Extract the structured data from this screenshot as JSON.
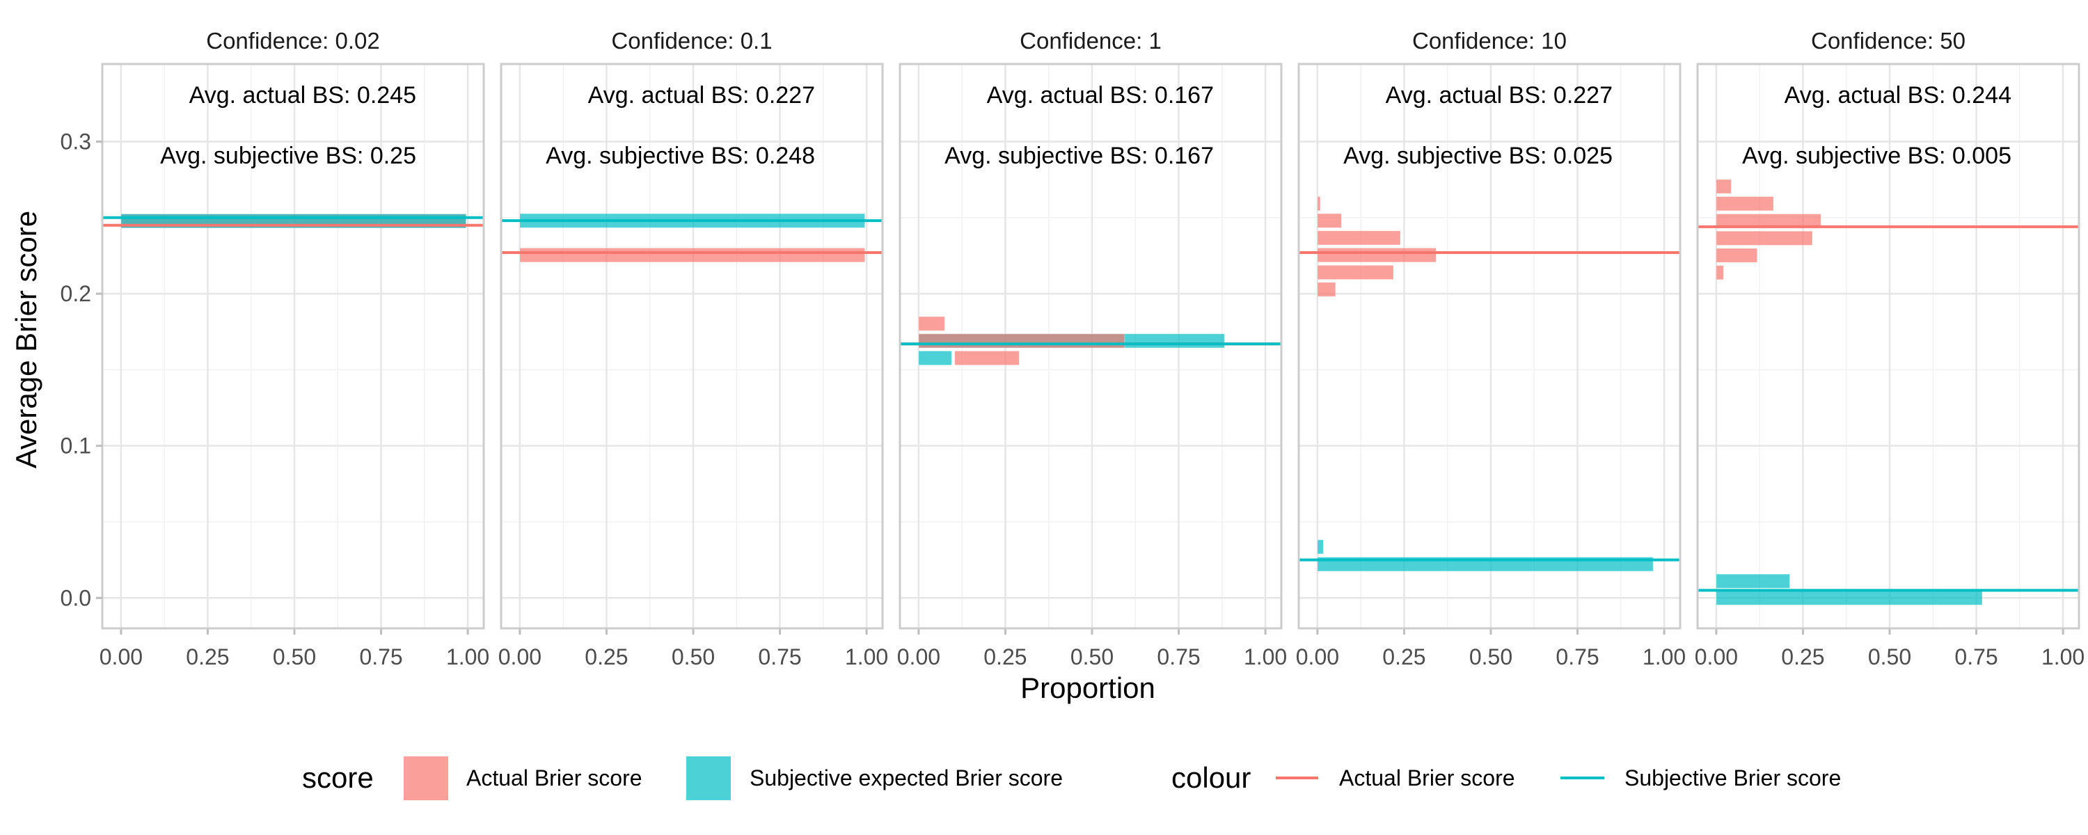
{
  "chart_data": {
    "type": "bar",
    "orientation": "horizontal histogram, faceted",
    "xlabel": "Proportion",
    "ylabel": "Average Brier score",
    "xlim": [
      -0.054,
      1.046
    ],
    "ylim": [
      -0.02,
      0.351
    ],
    "x_ticks": [
      "0.00",
      "0.25",
      "0.50",
      "0.75",
      "1.00"
    ],
    "x_tick_values": [
      0,
      0.25,
      0.5,
      0.75,
      1
    ],
    "y_ticks": [
      "0.0",
      "0.1",
      "0.2",
      "0.3"
    ],
    "y_tick_values": [
      0,
      0.1,
      0.2,
      0.3
    ],
    "bin_width": 0.0113,
    "grid": true,
    "colors": {
      "actual": "#F8766D",
      "subjective": "#00BFC4"
    },
    "panels": [
      {
        "title": "Confidence: 0.02",
        "annot_actual": "Avg. actual BS: 0.245",
        "annot_subjective": "Avg. subjective BS: 0.25",
        "line_actual": 0.245,
        "line_subjective": 0.25,
        "bars": [
          {
            "score": "actual",
            "y": 0.2478,
            "xmin": 0,
            "xmax": 0.995
          },
          {
            "score": "subjective",
            "y": 0.2478,
            "xmin": 0,
            "xmax": 0.995
          }
        ]
      },
      {
        "title": "Confidence: 0.1",
        "annot_actual": "Avg. actual BS: 0.227",
        "annot_subjective": "Avg. subjective BS: 0.248",
        "line_actual": 0.227,
        "line_subjective": 0.248,
        "bars": [
          {
            "score": "subjective",
            "y": 0.248,
            "xmin": 0,
            "xmax": 0.995
          },
          {
            "score": "actual",
            "y": 0.2254,
            "xmin": 0,
            "xmax": 0.995
          }
        ]
      },
      {
        "title": "Confidence: 1",
        "annot_actual": "Avg. actual BS: 0.167",
        "annot_subjective": "Avg. subjective BS: 0.167",
        "line_actual": 0.167,
        "line_subjective": 0.167,
        "bars": [
          {
            "score": "actual",
            "y": 0.1803,
            "xmin": 0,
            "xmax": 0.075
          },
          {
            "score": "subjective",
            "y": 0.169,
            "xmin": 0,
            "xmax": 0.882
          },
          {
            "score": "actual",
            "y": 0.169,
            "xmin": 0,
            "xmax": 0.594
          },
          {
            "score": "subjective",
            "y": 0.1577,
            "xmin": 0,
            "xmax": 0.095
          },
          {
            "score": "actual",
            "y": 0.1577,
            "xmin": 0.104,
            "xmax": 0.29
          }
        ]
      },
      {
        "title": "Confidence: 10",
        "annot_actual": "Avg. actual BS: 0.227",
        "annot_subjective": "Avg. subjective BS: 0.025",
        "line_actual": 0.227,
        "line_subjective": 0.025,
        "bars": [
          {
            "score": "actual",
            "y": 0.2592,
            "xmin": 0,
            "xmax": 0.008
          },
          {
            "score": "actual",
            "y": 0.248,
            "xmin": 0,
            "xmax": 0.069
          },
          {
            "score": "actual",
            "y": 0.2367,
            "xmin": 0,
            "xmax": 0.239
          },
          {
            "score": "actual",
            "y": 0.2254,
            "xmin": 0,
            "xmax": 0.342
          },
          {
            "score": "actual",
            "y": 0.214,
            "xmin": 0,
            "xmax": 0.219
          },
          {
            "score": "actual",
            "y": 0.2028,
            "xmin": 0,
            "xmax": 0.052
          },
          {
            "score": "subjective",
            "y": 0.0336,
            "xmin": 0,
            "xmax": 0.017
          },
          {
            "score": "subjective",
            "y": 0.0222,
            "xmin": 0,
            "xmax": 0.968
          }
        ]
      },
      {
        "title": "Confidence: 50",
        "annot_actual": "Avg. actual BS: 0.244",
        "annot_subjective": "Avg. subjective BS: 0.005",
        "line_actual": 0.244,
        "line_subjective": 0.005,
        "bars": [
          {
            "score": "actual",
            "y": 0.2705,
            "xmin": 0,
            "xmax": 0.043
          },
          {
            "score": "actual",
            "y": 0.2592,
            "xmin": 0,
            "xmax": 0.165
          },
          {
            "score": "actual",
            "y": 0.2478,
            "xmin": 0,
            "xmax": 0.302
          },
          {
            "score": "actual",
            "y": 0.2365,
            "xmin": 0,
            "xmax": 0.277
          },
          {
            "score": "actual",
            "y": 0.2252,
            "xmin": 0,
            "xmax": 0.118
          },
          {
            "score": "actual",
            "y": 0.2139,
            "xmin": 0,
            "xmax": 0.021
          },
          {
            "score": "subjective",
            "y": 0.011,
            "xmin": 0,
            "xmax": 0.212
          },
          {
            "score": "subjective",
            "y": 0.0,
            "xmin": 0,
            "xmax": 0.767
          }
        ]
      }
    ],
    "legend": {
      "placement": "bottom",
      "fill": {
        "title": "score",
        "items": [
          {
            "key": "actual",
            "label": "Actual Brier score"
          },
          {
            "key": "subjective",
            "label": "Subjective expected Brier score"
          }
        ]
      },
      "colour": {
        "title": "colour",
        "items": [
          {
            "key": "actual",
            "label": "Actual Brier score"
          },
          {
            "key": "subjective",
            "label": "Subjective Brier score"
          }
        ]
      }
    }
  }
}
